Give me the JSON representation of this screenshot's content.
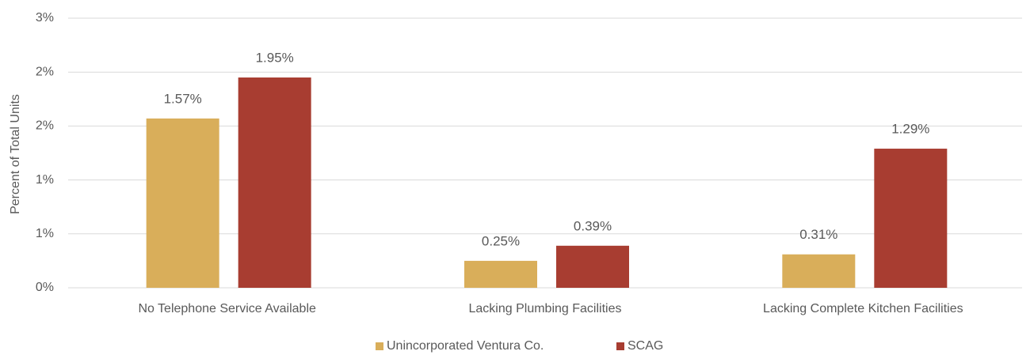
{
  "chart_data": {
    "type": "bar",
    "y_label": "Percent of Total Units",
    "categories": [
      "No Telephone Service Available",
      "Lacking Plumbing Facilities",
      "Lacking Complete Kitchen Facilities"
    ],
    "series": [
      {
        "name": "Unincorporated Ventura Co.",
        "color": "#d9ae5a",
        "values": [
          1.57,
          0.25,
          0.31
        ],
        "value_labels": [
          "1.57%",
          "0.25%",
          "0.31%"
        ]
      },
      {
        "name": "SCAG",
        "color": "#a83d31",
        "values": [
          1.95,
          0.39,
          1.29
        ],
        "value_labels": [
          "1.95%",
          "0.39%",
          "1.29%"
        ]
      }
    ],
    "ylim": [
      0,
      2.5
    ],
    "yticks": [
      {
        "value": 0,
        "label": "0%"
      },
      {
        "value": 0.5,
        "label": "1%"
      },
      {
        "value": 1,
        "label": "1%"
      },
      {
        "value": 1.5,
        "label": "2%"
      },
      {
        "value": 2,
        "label": "2%"
      },
      {
        "value": 2.5,
        "label": "3%"
      }
    ],
    "grid": true,
    "legend": "bottom"
  }
}
